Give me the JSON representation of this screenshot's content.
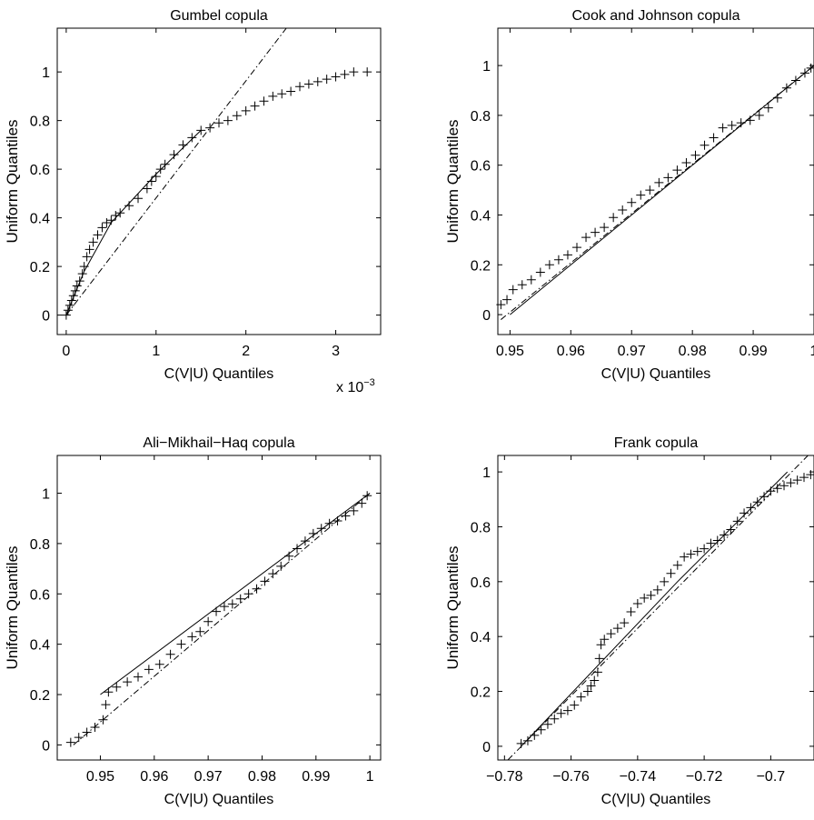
{
  "chart_data": [
    {
      "type": "scatter",
      "title": "Gumbel copula",
      "xlabel": "C(V|U) Quantiles",
      "ylabel": "Uniform Quantiles",
      "x_exponent_base": "x 10",
      "x_exponent_power": "−3",
      "xlim": [
        -0.0001,
        0.0035
      ],
      "ylim": [
        -0.08,
        1.18
      ],
      "xticks": [
        0,
        0.001,
        0.002,
        0.003
      ],
      "xtick_labels": [
        "0",
        "1",
        "2",
        "3"
      ],
      "yticks": [
        0,
        0.2,
        0.4,
        0.6,
        0.8,
        1
      ],
      "ytick_labels": [
        "0",
        "0.2",
        "0.4",
        "0.6",
        "0.8",
        "1"
      ],
      "grid": false,
      "marker": "plus",
      "colors": {
        "marker": "#000000",
        "axis": "#000000"
      },
      "reference_line": {
        "style": "dash-dot",
        "x": [
          0,
          0.00245
        ],
        "y": [
          0,
          1.18
        ]
      },
      "solid_line": {
        "x": [
          0,
          0.0002,
          0.0005,
          0.001,
          0.0015
        ],
        "y": [
          0,
          0.18,
          0.38,
          0.58,
          0.76
        ]
      },
      "series": [
        {
          "x": [
            0,
            2e-05,
            4e-05,
            6e-05,
            8e-05,
            0.0001,
            0.00012,
            0.00015,
            0.00018,
            0.0002,
            0.00023,
            0.00026,
            0.0003,
            0.00035,
            0.0004,
            0.00045,
            0.0005,
            0.00055,
            0.0006,
            0.0007,
            0.0008,
            0.0009,
            0.00095,
            0.001,
            0.00105,
            0.0011,
            0.0012,
            0.0013,
            0.0014,
            0.0015,
            0.0016,
            0.0017,
            0.0018,
            0.0019,
            0.002,
            0.0021,
            0.0022,
            0.0023,
            0.0024,
            0.0025,
            0.0026,
            0.0027,
            0.0028,
            0.0029,
            0.003,
            0.0031,
            0.0032,
            0.00335
          ],
          "y": [
            0.0,
            0.02,
            0.04,
            0.06,
            0.08,
            0.1,
            0.12,
            0.14,
            0.17,
            0.2,
            0.24,
            0.27,
            0.3,
            0.33,
            0.36,
            0.38,
            0.39,
            0.41,
            0.42,
            0.45,
            0.48,
            0.52,
            0.55,
            0.57,
            0.6,
            0.62,
            0.66,
            0.7,
            0.73,
            0.76,
            0.77,
            0.79,
            0.8,
            0.82,
            0.84,
            0.86,
            0.88,
            0.9,
            0.91,
            0.92,
            0.94,
            0.95,
            0.96,
            0.97,
            0.98,
            0.99,
            1.0,
            1.0
          ]
        }
      ]
    },
    {
      "type": "scatter",
      "title": "Cook and Johnson copula",
      "xlabel": "C(V|U) Quantiles",
      "ylabel": "Uniform Quantiles",
      "xlim": [
        0.948,
        1.0
      ],
      "ylim": [
        -0.08,
        1.15
      ],
      "xticks": [
        0.95,
        0.96,
        0.97,
        0.98,
        0.99,
        1.0
      ],
      "xtick_labels": [
        "0.95",
        "0.96",
        "0.97",
        "0.98",
        "0.99",
        "1"
      ],
      "yticks": [
        0,
        0.2,
        0.4,
        0.6,
        0.8,
        1
      ],
      "ytick_labels": [
        "0",
        "0.2",
        "0.4",
        "0.6",
        "0.8",
        "1"
      ],
      "grid": false,
      "marker": "plus",
      "reference_line": {
        "style": "dash-dot",
        "x": [
          0.9485,
          1.0
        ],
        "y": [
          -0.02,
          1.0
        ]
      },
      "solid_line": {
        "x": [
          0.95,
          1.0
        ],
        "y": [
          0.0,
          1.0
        ]
      },
      "series": [
        {
          "x": [
            0.9485,
            0.9495,
            0.9505,
            0.952,
            0.9535,
            0.955,
            0.9565,
            0.958,
            0.9595,
            0.961,
            0.9625,
            0.964,
            0.9655,
            0.967,
            0.9685,
            0.97,
            0.9715,
            0.973,
            0.9745,
            0.976,
            0.9775,
            0.979,
            0.9805,
            0.982,
            0.9835,
            0.985,
            0.9865,
            0.988,
            0.9895,
            0.991,
            0.9925,
            0.994,
            0.9955,
            0.997,
            0.9985,
            0.9995
          ],
          "y": [
            0.04,
            0.06,
            0.1,
            0.12,
            0.14,
            0.17,
            0.2,
            0.22,
            0.24,
            0.27,
            0.31,
            0.33,
            0.35,
            0.39,
            0.42,
            0.45,
            0.48,
            0.5,
            0.53,
            0.55,
            0.58,
            0.61,
            0.64,
            0.68,
            0.71,
            0.75,
            0.76,
            0.77,
            0.78,
            0.8,
            0.83,
            0.87,
            0.91,
            0.94,
            0.97,
            0.99
          ]
        }
      ]
    },
    {
      "type": "scatter",
      "title": "Ali−Mikhail−Haq copula",
      "xlabel": "C(V|U) Quantiles",
      "ylabel": "Uniform Quantiles",
      "xlim": [
        0.942,
        1.002
      ],
      "ylim": [
        -0.06,
        1.15
      ],
      "xticks": [
        0.95,
        0.96,
        0.97,
        0.98,
        0.99,
        1.0
      ],
      "xtick_labels": [
        "0.95",
        "0.96",
        "0.97",
        "0.98",
        "0.99",
        "1"
      ],
      "yticks": [
        0,
        0.2,
        0.4,
        0.6,
        0.8,
        1
      ],
      "ytick_labels": [
        "0",
        "0.2",
        "0.4",
        "0.6",
        "0.8",
        "1"
      ],
      "grid": false,
      "marker": "plus",
      "reference_line": {
        "style": "dash-dot",
        "x": [
          0.945,
          1.0
        ],
        "y": [
          0.0,
          1.0
        ]
      },
      "solid_line": {
        "x": [
          0.95,
          1.0
        ],
        "y": [
          0.2,
          1.0
        ]
      },
      "series": [
        {
          "x": [
            0.9445,
            0.946,
            0.9475,
            0.949,
            0.9505,
            0.951,
            0.9515,
            0.953,
            0.955,
            0.957,
            0.959,
            0.961,
            0.963,
            0.965,
            0.967,
            0.9685,
            0.97,
            0.9715,
            0.973,
            0.9745,
            0.976,
            0.9775,
            0.979,
            0.9805,
            0.982,
            0.9835,
            0.985,
            0.9865,
            0.988,
            0.9895,
            0.991,
            0.9925,
            0.994,
            0.9955,
            0.997,
            0.9985,
            0.9995
          ],
          "y": [
            0.01,
            0.03,
            0.05,
            0.07,
            0.1,
            0.16,
            0.21,
            0.23,
            0.25,
            0.27,
            0.3,
            0.32,
            0.36,
            0.4,
            0.43,
            0.45,
            0.49,
            0.53,
            0.55,
            0.56,
            0.58,
            0.6,
            0.62,
            0.65,
            0.68,
            0.71,
            0.75,
            0.78,
            0.81,
            0.84,
            0.86,
            0.88,
            0.89,
            0.91,
            0.93,
            0.96,
            0.99
          ]
        }
      ]
    },
    {
      "type": "scatter",
      "title": "Frank copula",
      "xlabel": "C(V|U) Quantiles",
      "ylabel": "Uniform Quantiles",
      "xlim": [
        -0.782,
        -0.687
      ],
      "ylim": [
        -0.05,
        1.06
      ],
      "xticks": [
        -0.78,
        -0.76,
        -0.74,
        -0.72,
        -0.7
      ],
      "xtick_labels": [
        "−0.78",
        "−0.76",
        "−0.74",
        "−0.72",
        "−0.7"
      ],
      "yticks": [
        0,
        0.2,
        0.4,
        0.6,
        0.8,
        1
      ],
      "ytick_labels": [
        "0",
        "0.2",
        "0.4",
        "0.6",
        "0.8",
        "1"
      ],
      "grid": false,
      "marker": "plus",
      "reference_line": {
        "style": "dash-dot",
        "x": [
          -0.779,
          -0.688
        ],
        "y": [
          -0.05,
          1.07
        ]
      },
      "solid_line": {
        "x": [
          -0.775,
          -0.728,
          -0.695
        ],
        "y": [
          0.0,
          0.6,
          1.0
        ]
      },
      "series": [
        {
          "x": [
            -0.775,
            -0.773,
            -0.771,
            -0.769,
            -0.767,
            -0.765,
            -0.763,
            -0.761,
            -0.759,
            -0.757,
            -0.755,
            -0.754,
            -0.753,
            -0.752,
            -0.7515,
            -0.751,
            -0.75,
            -0.748,
            -0.746,
            -0.744,
            -0.742,
            -0.74,
            -0.738,
            -0.736,
            -0.734,
            -0.732,
            -0.73,
            -0.728,
            -0.726,
            -0.724,
            -0.722,
            -0.72,
            -0.718,
            -0.716,
            -0.714,
            -0.712,
            -0.71,
            -0.708,
            -0.706,
            -0.704,
            -0.702,
            -0.7,
            -0.698,
            -0.696,
            -0.694,
            -0.692,
            -0.69,
            -0.688
          ],
          "y": [
            0.01,
            0.02,
            0.04,
            0.06,
            0.08,
            0.1,
            0.12,
            0.13,
            0.15,
            0.18,
            0.2,
            0.22,
            0.24,
            0.27,
            0.32,
            0.37,
            0.39,
            0.41,
            0.43,
            0.45,
            0.49,
            0.52,
            0.54,
            0.55,
            0.57,
            0.6,
            0.63,
            0.66,
            0.69,
            0.7,
            0.71,
            0.72,
            0.74,
            0.75,
            0.77,
            0.79,
            0.82,
            0.85,
            0.87,
            0.89,
            0.91,
            0.93,
            0.94,
            0.95,
            0.96,
            0.97,
            0.98,
            0.99
          ]
        }
      ]
    }
  ]
}
